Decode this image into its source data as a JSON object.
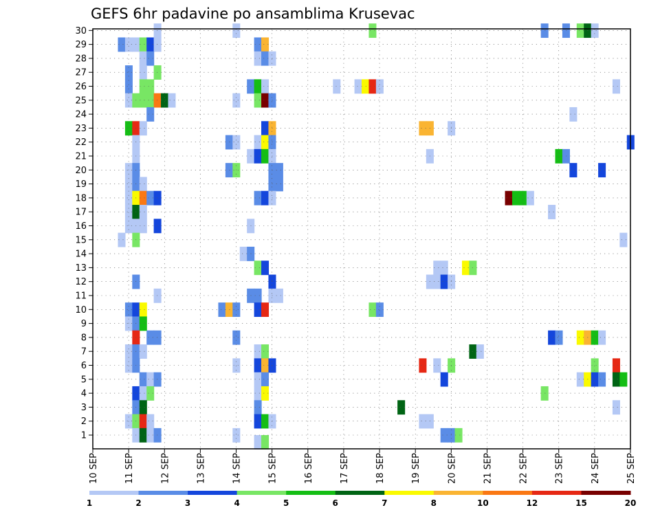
{
  "chart_data": {
    "type": "heatmap",
    "title": "GEFS 6hr padavine po ansamblima Krusevac",
    "y_members": [
      1,
      2,
      3,
      4,
      5,
      6,
      7,
      8,
      9,
      10,
      11,
      12,
      13,
      14,
      15,
      16,
      17,
      18,
      19,
      20,
      21,
      22,
      23,
      24,
      25,
      26,
      27,
      28,
      29,
      30
    ],
    "x_range_days": [
      10,
      25
    ],
    "x_tick_labels": [
      "10 SEP",
      "11 SEP",
      "12 SEP",
      "13 SEP",
      "14 SEP",
      "15 SEP",
      "16 SEP",
      "17 SEP",
      "18 SEP",
      "19 SEP",
      "20 SEP",
      "21 SEP",
      "22 SEP",
      "23 SEP",
      "24 SEP",
      "25 SEP"
    ],
    "colorbar": {
      "labels": [
        "1",
        "2",
        "3",
        "4",
        "5",
        "6",
        "7",
        "8",
        "10",
        "12",
        "15",
        "20"
      ],
      "colors": [
        "#b4c8f5",
        "#5a8ce6",
        "#1446dc",
        "#78e664",
        "#14be14",
        "#006414",
        "#fafa00",
        "#fab432",
        "#fa7814",
        "#e62814",
        "#780000"
      ]
    },
    "cells": [
      {
        "m": 30,
        "d": 11.8,
        "c": 0
      },
      {
        "m": 30,
        "d": 14.0,
        "c": 0
      },
      {
        "m": 30,
        "d": 17.8,
        "c": 3
      },
      {
        "m": 30,
        "d": 22.6,
        "c": 1
      },
      {
        "m": 30,
        "d": 23.2,
        "c": 1
      },
      {
        "m": 30,
        "d": 23.6,
        "c": 3
      },
      {
        "m": 30,
        "d": 23.8,
        "c": 5
      },
      {
        "m": 30,
        "d": 24.0,
        "c": 0
      },
      {
        "m": 29,
        "d": 10.8,
        "c": 1
      },
      {
        "m": 29,
        "d": 11.0,
        "c": 0
      },
      {
        "m": 29,
        "d": 11.2,
        "c": 0
      },
      {
        "m": 29,
        "d": 11.4,
        "c": 3
      },
      {
        "m": 29,
        "d": 11.6,
        "c": 2
      },
      {
        "m": 29,
        "d": 11.8,
        "c": 0
      },
      {
        "m": 29,
        "d": 14.6,
        "c": 1
      },
      {
        "m": 29,
        "d": 14.8,
        "c": 7
      },
      {
        "m": 28,
        "d": 11.4,
        "c": 0
      },
      {
        "m": 28,
        "d": 11.6,
        "c": 1
      },
      {
        "m": 28,
        "d": 14.6,
        "c": 0
      },
      {
        "m": 28,
        "d": 14.8,
        "c": 1
      },
      {
        "m": 28,
        "d": 15.0,
        "c": 0
      },
      {
        "m": 27,
        "d": 11.0,
        "c": 1
      },
      {
        "m": 27,
        "d": 11.4,
        "c": 0
      },
      {
        "m": 27,
        "d": 11.8,
        "c": 3
      },
      {
        "m": 26,
        "d": 11.0,
        "c": 1
      },
      {
        "m": 26,
        "d": 11.4,
        "c": 3
      },
      {
        "m": 26,
        "d": 11.6,
        "c": 3
      },
      {
        "m": 26,
        "d": 14.4,
        "c": 1
      },
      {
        "m": 26,
        "d": 14.6,
        "c": 4
      },
      {
        "m": 26,
        "d": 14.8,
        "c": 0
      },
      {
        "m": 26,
        "d": 16.8,
        "c": 0
      },
      {
        "m": 26,
        "d": 17.4,
        "c": 0
      },
      {
        "m": 26,
        "d": 17.6,
        "c": 6
      },
      {
        "m": 26,
        "d": 17.8,
        "c": 9
      },
      {
        "m": 26,
        "d": 18.0,
        "c": 0
      },
      {
        "m": 26,
        "d": 24.6,
        "c": 0
      },
      {
        "m": 25,
        "d": 11.0,
        "c": 0
      },
      {
        "m": 25,
        "d": 11.2,
        "c": 3
      },
      {
        "m": 25,
        "d": 11.4,
        "c": 3
      },
      {
        "m": 25,
        "d": 11.6,
        "c": 3
      },
      {
        "m": 25,
        "d": 11.8,
        "c": 8
      },
      {
        "m": 25,
        "d": 12.0,
        "c": 5
      },
      {
        "m": 25,
        "d": 12.2,
        "c": 0
      },
      {
        "m": 25,
        "d": 14.0,
        "c": 0
      },
      {
        "m": 25,
        "d": 14.6,
        "c": 3
      },
      {
        "m": 25,
        "d": 14.8,
        "c": 10
      },
      {
        "m": 25,
        "d": 15.0,
        "c": 1
      },
      {
        "m": 24,
        "d": 11.6,
        "c": 1
      },
      {
        "m": 24,
        "d": 23.4,
        "c": 0
      },
      {
        "m": 23,
        "d": 11.0,
        "c": 4
      },
      {
        "m": 23,
        "d": 11.2,
        "c": 9
      },
      {
        "m": 23,
        "d": 11.4,
        "c": 0
      },
      {
        "m": 23,
        "d": 14.8,
        "c": 2
      },
      {
        "m": 23,
        "d": 15.0,
        "c": 7
      },
      {
        "m": 23,
        "d": 19.2,
        "c": 7
      },
      {
        "m": 23,
        "d": 19.4,
        "c": 7
      },
      {
        "m": 23,
        "d": 20.0,
        "c": 0
      },
      {
        "m": 22,
        "d": 11.2,
        "c": 0
      },
      {
        "m": 22,
        "d": 13.8,
        "c": 1
      },
      {
        "m": 22,
        "d": 14.0,
        "c": 0
      },
      {
        "m": 22,
        "d": 14.6,
        "c": 0
      },
      {
        "m": 22,
        "d": 14.8,
        "c": 6
      },
      {
        "m": 22,
        "d": 15.0,
        "c": 1
      },
      {
        "m": 22,
        "d": 25.0,
        "c": 2
      },
      {
        "m": 21,
        "d": 11.2,
        "c": 0
      },
      {
        "m": 21,
        "d": 14.4,
        "c": 0
      },
      {
        "m": 21,
        "d": 14.6,
        "c": 2
      },
      {
        "m": 21,
        "d": 14.8,
        "c": 4
      },
      {
        "m": 21,
        "d": 15.0,
        "c": 0
      },
      {
        "m": 21,
        "d": 19.4,
        "c": 0
      },
      {
        "m": 21,
        "d": 23.0,
        "c": 4
      },
      {
        "m": 21,
        "d": 23.2,
        "c": 1
      },
      {
        "m": 20,
        "d": 11.0,
        "c": 0
      },
      {
        "m": 20,
        "d": 11.2,
        "c": 1
      },
      {
        "m": 20,
        "d": 13.8,
        "c": 1
      },
      {
        "m": 20,
        "d": 14.0,
        "c": 3
      },
      {
        "m": 20,
        "d": 15.0,
        "c": 1
      },
      {
        "m": 20,
        "d": 15.2,
        "c": 1
      },
      {
        "m": 20,
        "d": 23.4,
        "c": 2
      },
      {
        "m": 20,
        "d": 24.2,
        "c": 2
      },
      {
        "m": 19,
        "d": 11.0,
        "c": 0
      },
      {
        "m": 19,
        "d": 11.2,
        "c": 1
      },
      {
        "m": 19,
        "d": 11.4,
        "c": 0
      },
      {
        "m": 19,
        "d": 15.0,
        "c": 1
      },
      {
        "m": 19,
        "d": 15.2,
        "c": 1
      },
      {
        "m": 18,
        "d": 11.0,
        "c": 0
      },
      {
        "m": 18,
        "d": 11.2,
        "c": 6
      },
      {
        "m": 18,
        "d": 11.4,
        "c": 8
      },
      {
        "m": 18,
        "d": 11.6,
        "c": 1
      },
      {
        "m": 18,
        "d": 11.8,
        "c": 2
      },
      {
        "m": 18,
        "d": 14.6,
        "c": 1
      },
      {
        "m": 18,
        "d": 14.8,
        "c": 2
      },
      {
        "m": 18,
        "d": 15.0,
        "c": 0
      },
      {
        "m": 18,
        "d": 21.6,
        "c": 10
      },
      {
        "m": 18,
        "d": 21.8,
        "c": 4
      },
      {
        "m": 18,
        "d": 22.0,
        "c": 4
      },
      {
        "m": 18,
        "d": 22.2,
        "c": 0
      },
      {
        "m": 17,
        "d": 11.0,
        "c": 0
      },
      {
        "m": 17,
        "d": 11.2,
        "c": 5
      },
      {
        "m": 17,
        "d": 11.4,
        "c": 0
      },
      {
        "m": 17,
        "d": 22.8,
        "c": 0
      },
      {
        "m": 16,
        "d": 11.0,
        "c": 0
      },
      {
        "m": 16,
        "d": 11.2,
        "c": 0
      },
      {
        "m": 16,
        "d": 11.4,
        "c": 0
      },
      {
        "m": 16,
        "d": 11.8,
        "c": 2
      },
      {
        "m": 16,
        "d": 14.4,
        "c": 0
      },
      {
        "m": 15,
        "d": 10.8,
        "c": 0
      },
      {
        "m": 15,
        "d": 11.2,
        "c": 3
      },
      {
        "m": 15,
        "d": 24.8,
        "c": 0
      },
      {
        "m": 14,
        "d": 14.2,
        "c": 0
      },
      {
        "m": 14,
        "d": 14.4,
        "c": 1
      },
      {
        "m": 13,
        "d": 14.6,
        "c": 3
      },
      {
        "m": 13,
        "d": 14.8,
        "c": 2
      },
      {
        "m": 13,
        "d": 19.6,
        "c": 0
      },
      {
        "m": 13,
        "d": 19.8,
        "c": 0
      },
      {
        "m": 13,
        "d": 20.4,
        "c": 6
      },
      {
        "m": 13,
        "d": 20.6,
        "c": 3
      },
      {
        "m": 12,
        "d": 11.2,
        "c": 1
      },
      {
        "m": 12,
        "d": 15.0,
        "c": 2
      },
      {
        "m": 12,
        "d": 19.4,
        "c": 0
      },
      {
        "m": 12,
        "d": 19.6,
        "c": 0
      },
      {
        "m": 12,
        "d": 19.8,
        "c": 2
      },
      {
        "m": 12,
        "d": 20.0,
        "c": 0
      },
      {
        "m": 11,
        "d": 11.8,
        "c": 0
      },
      {
        "m": 11,
        "d": 14.4,
        "c": 1
      },
      {
        "m": 11,
        "d": 14.6,
        "c": 1
      },
      {
        "m": 11,
        "d": 15.0,
        "c": 0
      },
      {
        "m": 11,
        "d": 15.2,
        "c": 0
      },
      {
        "m": 10,
        "d": 11.0,
        "c": 1
      },
      {
        "m": 10,
        "d": 11.2,
        "c": 2
      },
      {
        "m": 10,
        "d": 11.4,
        "c": 6
      },
      {
        "m": 10,
        "d": 13.6,
        "c": 1
      },
      {
        "m": 10,
        "d": 13.8,
        "c": 7
      },
      {
        "m": 10,
        "d": 14.0,
        "c": 1
      },
      {
        "m": 10,
        "d": 14.6,
        "c": 2
      },
      {
        "m": 10,
        "d": 14.8,
        "c": 9
      },
      {
        "m": 10,
        "d": 17.8,
        "c": 3
      },
      {
        "m": 10,
        "d": 18.0,
        "c": 1
      },
      {
        "m": 9,
        "d": 11.0,
        "c": 0
      },
      {
        "m": 9,
        "d": 11.2,
        "c": 1
      },
      {
        "m": 9,
        "d": 11.4,
        "c": 4
      },
      {
        "m": 8,
        "d": 11.2,
        "c": 9
      },
      {
        "m": 8,
        "d": 11.6,
        "c": 1
      },
      {
        "m": 8,
        "d": 11.8,
        "c": 1
      },
      {
        "m": 8,
        "d": 14.0,
        "c": 1
      },
      {
        "m": 8,
        "d": 22.8,
        "c": 2
      },
      {
        "m": 8,
        "d": 23.0,
        "c": 1
      },
      {
        "m": 8,
        "d": 23.6,
        "c": 6
      },
      {
        "m": 8,
        "d": 23.8,
        "c": 7
      },
      {
        "m": 8,
        "d": 24.0,
        "c": 4
      },
      {
        "m": 8,
        "d": 24.2,
        "c": 0
      },
      {
        "m": 7,
        "d": 11.0,
        "c": 0
      },
      {
        "m": 7,
        "d": 11.2,
        "c": 1
      },
      {
        "m": 7,
        "d": 11.4,
        "c": 0
      },
      {
        "m": 7,
        "d": 14.6,
        "c": 0
      },
      {
        "m": 7,
        "d": 14.8,
        "c": 3
      },
      {
        "m": 7,
        "d": 20.6,
        "c": 5
      },
      {
        "m": 7,
        "d": 20.8,
        "c": 0
      },
      {
        "m": 6,
        "d": 11.0,
        "c": 0
      },
      {
        "m": 6,
        "d": 11.2,
        "c": 1
      },
      {
        "m": 6,
        "d": 14.0,
        "c": 0
      },
      {
        "m": 6,
        "d": 14.6,
        "c": 2
      },
      {
        "m": 6,
        "d": 14.8,
        "c": 7
      },
      {
        "m": 6,
        "d": 15.0,
        "c": 2
      },
      {
        "m": 6,
        "d": 19.2,
        "c": 9
      },
      {
        "m": 6,
        "d": 19.6,
        "c": 0
      },
      {
        "m": 6,
        "d": 20.0,
        "c": 3
      },
      {
        "m": 6,
        "d": 24.0,
        "c": 3
      },
      {
        "m": 6,
        "d": 24.6,
        "c": 9
      },
      {
        "m": 5,
        "d": 11.4,
        "c": 1
      },
      {
        "m": 5,
        "d": 11.6,
        "c": 0
      },
      {
        "m": 5,
        "d": 11.8,
        "c": 1
      },
      {
        "m": 5,
        "d": 14.6,
        "c": 0
      },
      {
        "m": 5,
        "d": 14.8,
        "c": 1
      },
      {
        "m": 5,
        "d": 19.8,
        "c": 2
      },
      {
        "m": 5,
        "d": 23.6,
        "c": 0
      },
      {
        "m": 5,
        "d": 23.8,
        "c": 6
      },
      {
        "m": 5,
        "d": 24.0,
        "c": 2
      },
      {
        "m": 5,
        "d": 24.2,
        "c": 1
      },
      {
        "m": 5,
        "d": 24.6,
        "c": 5
      },
      {
        "m": 5,
        "d": 24.8,
        "c": 4
      },
      {
        "m": 4,
        "d": 11.2,
        "c": 2
      },
      {
        "m": 4,
        "d": 11.4,
        "c": 0
      },
      {
        "m": 4,
        "d": 11.6,
        "c": 3
      },
      {
        "m": 4,
        "d": 14.6,
        "c": 0
      },
      {
        "m": 4,
        "d": 14.8,
        "c": 6
      },
      {
        "m": 4,
        "d": 22.6,
        "c": 3
      },
      {
        "m": 3,
        "d": 11.2,
        "c": 1
      },
      {
        "m": 3,
        "d": 11.4,
        "c": 5
      },
      {
        "m": 3,
        "d": 14.6,
        "c": 1
      },
      {
        "m": 3,
        "d": 18.6,
        "c": 5
      },
      {
        "m": 3,
        "d": 24.6,
        "c": 0
      },
      {
        "m": 2,
        "d": 11.0,
        "c": 0
      },
      {
        "m": 2,
        "d": 11.2,
        "c": 3
      },
      {
        "m": 2,
        "d": 11.4,
        "c": 9
      },
      {
        "m": 2,
        "d": 11.6,
        "c": 0
      },
      {
        "m": 2,
        "d": 14.6,
        "c": 2
      },
      {
        "m": 2,
        "d": 14.8,
        "c": 4
      },
      {
        "m": 2,
        "d": 15.0,
        "c": 0
      },
      {
        "m": 2,
        "d": 19.2,
        "c": 0
      },
      {
        "m": 2,
        "d": 19.4,
        "c": 0
      },
      {
        "m": 1,
        "d": 11.2,
        "c": 0
      },
      {
        "m": 1,
        "d": 11.4,
        "c": 5
      },
      {
        "m": 1,
        "d": 11.6,
        "c": 0
      },
      {
        "m": 1,
        "d": 11.8,
        "c": 1
      },
      {
        "m": 1,
        "d": 14.0,
        "c": 0
      },
      {
        "m": 1,
        "d": 19.8,
        "c": 1
      },
      {
        "m": 1,
        "d": 20.0,
        "c": 1
      },
      {
        "m": 1,
        "d": 20.2,
        "c": 3
      },
      {
        "m": 0.5,
        "d": 14.6,
        "c": 0
      },
      {
        "m": 0.5,
        "d": 14.8,
        "c": 3
      }
    ]
  }
}
